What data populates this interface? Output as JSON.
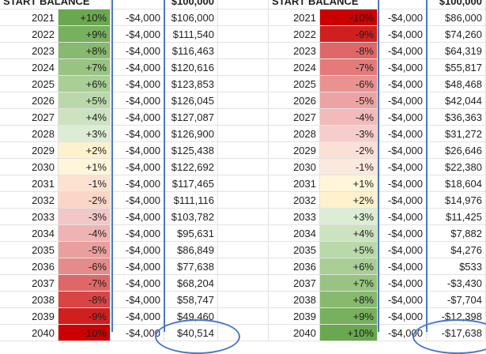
{
  "headers": {
    "left_start_balance": "START BALANCE",
    "left_balance": "$100,000",
    "right_start_balance": "START BALANCE",
    "right_balance": "$100,000"
  },
  "left_table": [
    {
      "year": "2021",
      "pct": "+10%",
      "withdraw": "-$4,000",
      "balance": "$106,000",
      "color": "#6aa84f"
    },
    {
      "year": "2022",
      "pct": "+9%",
      "withdraw": "-$4,000",
      "balance": "$111,540",
      "color": "#78b05e"
    },
    {
      "year": "2023",
      "pct": "+8%",
      "withdraw": "-$4,000",
      "balance": "$116,463",
      "color": "#87b96e"
    },
    {
      "year": "2024",
      "pct": "+7%",
      "withdraw": "-$4,000",
      "balance": "$120,616",
      "color": "#98c482"
    },
    {
      "year": "2025",
      "pct": "+6%",
      "withdraw": "-$4,000",
      "balance": "$123,853",
      "color": "#a9ce96"
    },
    {
      "year": "2026",
      "pct": "+5%",
      "withdraw": "-$4,000",
      "balance": "$126,045",
      "color": "#bad9aa"
    },
    {
      "year": "2027",
      "pct": "+4%",
      "withdraw": "-$4,000",
      "balance": "$127,087",
      "color": "#cce3c0"
    },
    {
      "year": "2028",
      "pct": "+3%",
      "withdraw": "-$4,000",
      "balance": "$126,900",
      "color": "#ddedd5"
    },
    {
      "year": "2029",
      "pct": "+2%",
      "withdraw": "-$4,000",
      "balance": "$125,438",
      "color": "#fff1cc"
    },
    {
      "year": "2030",
      "pct": "+1%",
      "withdraw": "-$4,000",
      "balance": "$122,692",
      "color": "#fff5d9"
    },
    {
      "year": "2031",
      "pct": "-1%",
      "withdraw": "-$4,000",
      "balance": "$117,465",
      "color": "#fde2d2"
    },
    {
      "year": "2032",
      "pct": "-2%",
      "withdraw": "-$4,000",
      "balance": "$111,116",
      "color": "#fbd6c7"
    },
    {
      "year": "2033",
      "pct": "-3%",
      "withdraw": "-$4,000",
      "balance": "$103,782",
      "color": "#f4c7c7"
    },
    {
      "year": "2034",
      "pct": "-4%",
      "withdraw": "-$4,000",
      "balance": "$95,631",
      "color": "#efb3b3"
    },
    {
      "year": "2035",
      "pct": "-5%",
      "withdraw": "-$4,000",
      "balance": "$86,849",
      "color": "#ea9f9f"
    },
    {
      "year": "2036",
      "pct": "-6%",
      "withdraw": "-$4,000",
      "balance": "$77,638",
      "color": "#e58b8b"
    },
    {
      "year": "2037",
      "pct": "-7%",
      "withdraw": "-$4,000",
      "balance": "$68,204",
      "color": "#e06767"
    },
    {
      "year": "2038",
      "pct": "-8%",
      "withdraw": "-$4,000",
      "balance": "$58,747",
      "color": "#d94545"
    },
    {
      "year": "2039",
      "pct": "-9%",
      "withdraw": "-$4,000",
      "balance": "$49,460",
      "color": "#cf1f1f"
    },
    {
      "year": "2040",
      "pct": "-10%",
      "withdraw": "-$4,000",
      "balance": "$40,514",
      "color": "#cc0000"
    }
  ],
  "right_table": [
    {
      "year": "2021",
      "pct": "-10%",
      "withdraw": "-$4,000",
      "balance": "$86,000",
      "color": "#cc0000"
    },
    {
      "year": "2022",
      "pct": "-9%",
      "withdraw": "-$4,000",
      "balance": "$74,260",
      "color": "#cf1f1f"
    },
    {
      "year": "2023",
      "pct": "-8%",
      "withdraw": "-$4,000",
      "balance": "$64,319",
      "color": "#e06767"
    },
    {
      "year": "2024",
      "pct": "-7%",
      "withdraw": "-$4,000",
      "balance": "$55,817",
      "color": "#e47a7a"
    },
    {
      "year": "2025",
      "pct": "-6%",
      "withdraw": "-$4,000",
      "balance": "$48,468",
      "color": "#e99292"
    },
    {
      "year": "2026",
      "pct": "-5%",
      "withdraw": "-$4,000",
      "balance": "$42,044",
      "color": "#eda3a3"
    },
    {
      "year": "2027",
      "pct": "-4%",
      "withdraw": "-$4,000",
      "balance": "$36,363",
      "color": "#f2baba"
    },
    {
      "year": "2028",
      "pct": "-3%",
      "withdraw": "-$4,000",
      "balance": "$31,272",
      "color": "#f6cdcd"
    },
    {
      "year": "2029",
      "pct": "-2%",
      "withdraw": "-$4,000",
      "balance": "$26,646",
      "color": "#fbe0d6"
    },
    {
      "year": "2030",
      "pct": "-1%",
      "withdraw": "-$4,000",
      "balance": "$22,380",
      "color": "#fde8de"
    },
    {
      "year": "2031",
      "pct": "+1%",
      "withdraw": "-$4,000",
      "balance": "$18,604",
      "color": "#fff5d9"
    },
    {
      "year": "2032",
      "pct": "+2%",
      "withdraw": "-$4,000",
      "balance": "$14,976",
      "color": "#fff1cc"
    },
    {
      "year": "2033",
      "pct": "+3%",
      "withdraw": "-$4,000",
      "balance": "$11,425",
      "color": "#ddedd5"
    },
    {
      "year": "2034",
      "pct": "+4%",
      "withdraw": "-$4,000",
      "balance": "$7,882",
      "color": "#cce3c0"
    },
    {
      "year": "2035",
      "pct": "+5%",
      "withdraw": "-$4,000",
      "balance": "$4,276",
      "color": "#bad9aa"
    },
    {
      "year": "2036",
      "pct": "+6%",
      "withdraw": "-$4,000",
      "balance": "$533",
      "color": "#a9ce96"
    },
    {
      "year": "2037",
      "pct": "+7%",
      "withdraw": "-$4,000",
      "balance": "-$3,430",
      "color": "#98c482"
    },
    {
      "year": "2038",
      "pct": "+8%",
      "withdraw": "-$4,000",
      "balance": "-$7,704",
      "color": "#87b96e"
    },
    {
      "year": "2039",
      "pct": "+9%",
      "withdraw": "-$4,000",
      "balance": "-$12,398",
      "color": "#78b05e"
    },
    {
      "year": "2040",
      "pct": "+10%",
      "withdraw": "-$4,000",
      "balance": "-$17,638",
      "color": "#6aa84f"
    }
  ],
  "accent_color": "#4a78c7"
}
